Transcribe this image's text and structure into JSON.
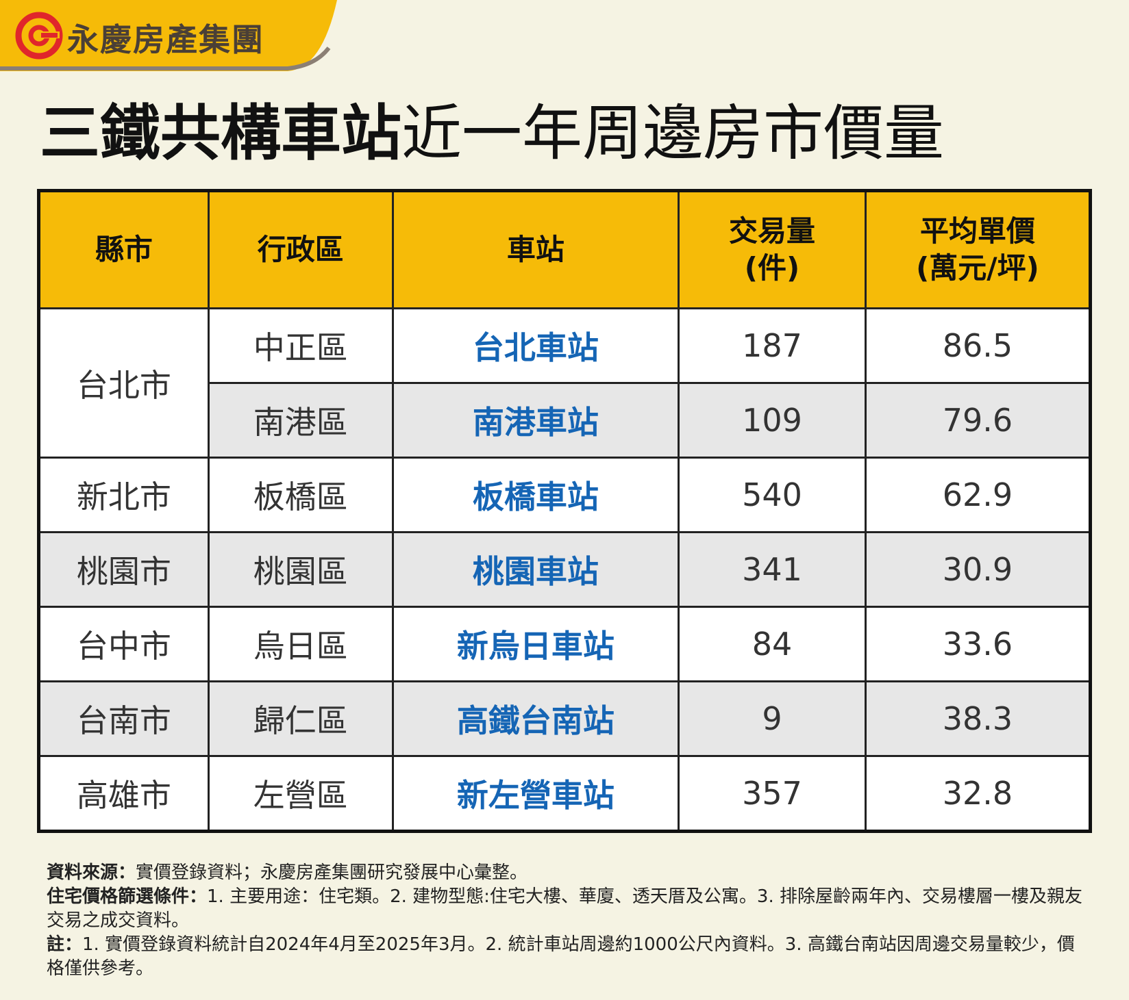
{
  "brand": {
    "name": "永慶房產集團",
    "colors": {
      "banner": "#f6bb08",
      "logo": "#e0262b"
    }
  },
  "title": {
    "bold": "三鐵共構車站",
    "light": "近一年周邊房市價量"
  },
  "table": {
    "headers": {
      "county": "縣市",
      "district": "行政區",
      "station": "車站",
      "volume_1": "交易量",
      "volume_2": "(件)",
      "price_1": "平均單價",
      "price_2": "(萬元/坪)"
    },
    "rows": [
      {
        "county": "台北市",
        "district": "中正區",
        "station": "台北車站",
        "volume": "187",
        "price": "86.5"
      },
      {
        "county": "",
        "district": "南港區",
        "station": "南港車站",
        "volume": "109",
        "price": "79.6"
      },
      {
        "county": "新北市",
        "district": "板橋區",
        "station": "板橋車站",
        "volume": "540",
        "price": "62.9"
      },
      {
        "county": "桃園市",
        "district": "桃園區",
        "station": "桃園車站",
        "volume": "341",
        "price": "30.9"
      },
      {
        "county": "台中市",
        "district": "烏日區",
        "station": "新烏日車站",
        "volume": "84",
        "price": "33.6"
      },
      {
        "county": "台南市",
        "district": "歸仁區",
        "station": "高鐵台南站",
        "volume": "9",
        "price": "38.3"
      },
      {
        "county": "高雄市",
        "district": "左營區",
        "station": "新左營車站",
        "volume": "357",
        "price": "32.8"
      }
    ],
    "colors": {
      "header_bg": "#f6bb08",
      "station_text": "#1565b5",
      "shade_row": "#e7e7e7"
    }
  },
  "notes": {
    "source_label": "資料來源：",
    "source_text": "實價登錄資料；永慶房產集團研究發展中心彙整。",
    "criteria_label": "住宅價格篩選條件：",
    "criteria_text": "1. 主要用途：住宅類。2. 建物型態:住宅大樓、華廈、透天厝及公寓。3. 排除屋齡兩年內、交易樓層一樓及親友交易之成交資料。",
    "remark_label": "註：",
    "remark_text": "1. 實價登錄資料統計自2024年4月至2025年3月。2. 統計車站周邊約1000公尺內資料。3. 高鐵台南站因周邊交易量較少，價格僅供參考。"
  }
}
